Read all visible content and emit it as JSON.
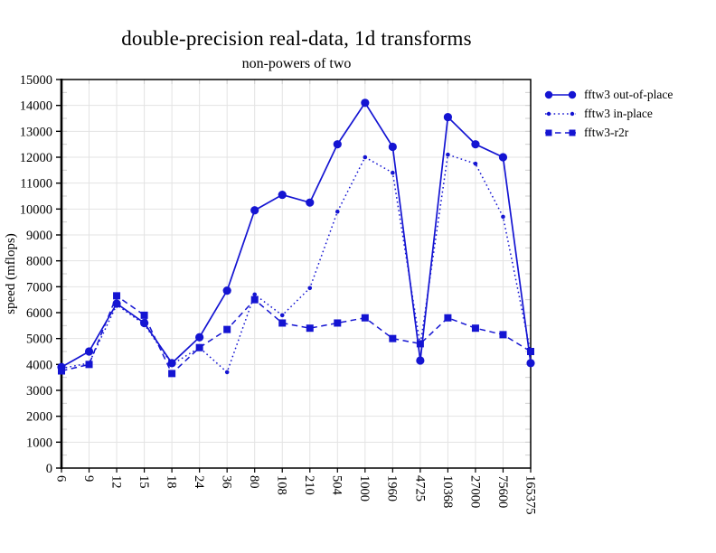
{
  "chart_data": {
    "type": "line",
    "title": "double-precision real-data, 1d transforms",
    "subtitle": "non-powers of two",
    "xlabel": "",
    "ylabel": "speed (mflops)",
    "ylim": [
      0,
      15000
    ],
    "ytick_step": 1000,
    "y_minor_tick_step": 500,
    "grid": true,
    "legend_position": "outside-right-top",
    "color": "#1414d2",
    "grid_color": "#e3e3e3",
    "categories": [
      "6",
      "9",
      "12",
      "15",
      "18",
      "24",
      "36",
      "80",
      "108",
      "210",
      "504",
      "1000",
      "1960",
      "4725",
      "10368",
      "27000",
      "75600",
      "165375"
    ],
    "series": [
      {
        "name": "fftw3 out-of-place",
        "marker": "circle",
        "line_style": "solid",
        "values": [
          3900,
          4500,
          6350,
          5600,
          4050,
          5050,
          6850,
          9950,
          10550,
          10250,
          12500,
          14100,
          12400,
          4150,
          13550,
          12500,
          12000,
          4050
        ]
      },
      {
        "name": "fftw3 in-place",
        "marker": "dot",
        "line_style": "dotted",
        "values": [
          3850,
          4050,
          6300,
          5550,
          4000,
          4650,
          3700,
          6700,
          5900,
          6950,
          9900,
          12000,
          11400,
          4750,
          12100,
          11750,
          9700,
          4450
        ]
      },
      {
        "name": "fftw3-r2r",
        "marker": "square",
        "line_style": "dashed",
        "values": [
          3750,
          4000,
          6650,
          5900,
          3650,
          4650,
          5350,
          6500,
          5600,
          5400,
          5600,
          5800,
          5000,
          4800,
          5800,
          5400,
          5150,
          4500
        ]
      }
    ]
  }
}
